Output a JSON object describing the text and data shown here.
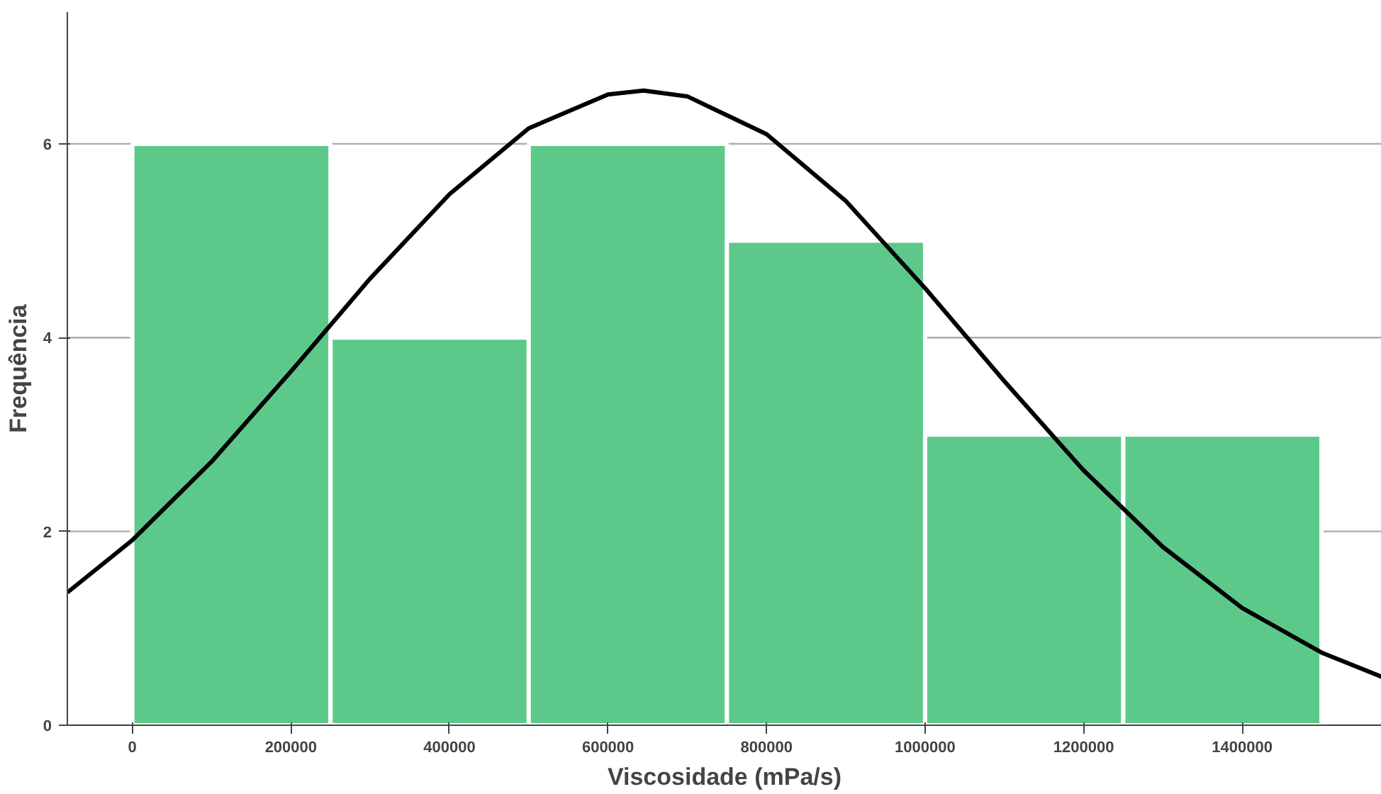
{
  "chart_data": {
    "type": "histogram",
    "xlabel": "Viscosidade (mPa/s)",
    "ylabel": "Frequência",
    "bins": [
      0,
      250000,
      500000,
      750000,
      1000000,
      1250000,
      1500000
    ],
    "values": [
      6,
      4,
      6,
      5,
      3,
      3
    ],
    "color": "#5cc98b",
    "xlim": [
      -82000,
      1576000
    ],
    "ylim": [
      0,
      7.36
    ],
    "xticks": [
      0,
      200000,
      400000,
      600000,
      800000,
      1000000,
      1200000,
      1400000
    ],
    "yticks": [
      0,
      2,
      4,
      6
    ],
    "grid": "y",
    "series": [
      {
        "type": "line",
        "color": "#000000",
        "x": [
          -82000,
          0,
          100000,
          200000,
          300000,
          400000,
          500000,
          600000,
          645000,
          700000,
          800000,
          900000,
          1000000,
          1100000,
          1200000,
          1300000,
          1400000,
          1500000,
          1576000
        ],
        "values": [
          1.37,
          1.91,
          2.72,
          3.65,
          4.61,
          5.48,
          6.16,
          6.51,
          6.55,
          6.49,
          6.1,
          5.41,
          4.51,
          3.55,
          2.63,
          1.84,
          1.21,
          0.75,
          0.5
        ]
      }
    ]
  }
}
